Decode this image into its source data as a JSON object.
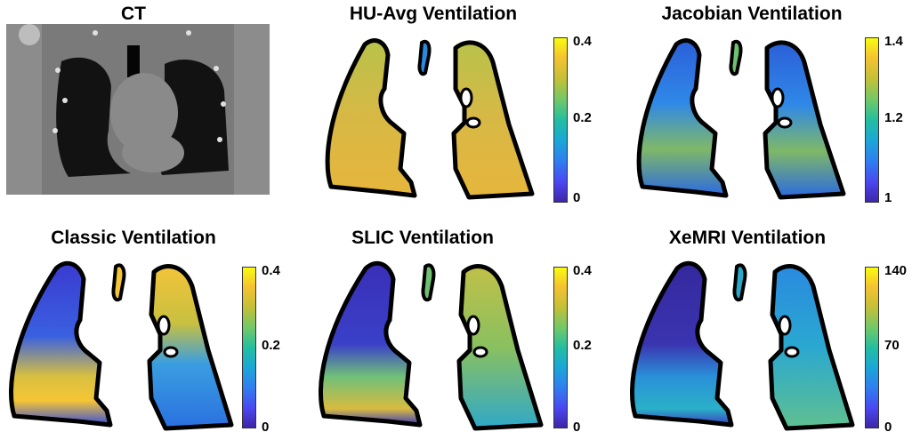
{
  "panels": [
    {
      "title": "CT"
    },
    {
      "title": "HU-Avg Ventilation",
      "colorbar": {
        "max": "0.4",
        "mid": "0.2",
        "min": "0"
      }
    },
    {
      "title": "Jacobian Ventilation",
      "colorbar": {
        "max": "1.4",
        "mid": "1.2",
        "min": "1"
      }
    },
    {
      "title": "Classic Ventilation",
      "colorbar": {
        "max": "0.4",
        "mid": "0.2",
        "min": "0"
      }
    },
    {
      "title": "SLIC Ventilation",
      "colorbar": {
        "max": "0.4",
        "mid": "0.2",
        "min": "0"
      }
    },
    {
      "title": "XeMRI Ventilation",
      "colorbar": {
        "max": "140",
        "mid": "70",
        "min": "0"
      }
    }
  ],
  "colors": {
    "colormap_low": "#3e26a8",
    "colormap_high": "#f9fb0e",
    "ct_background": "#7a7a7a",
    "lung_outline": "#000000"
  }
}
